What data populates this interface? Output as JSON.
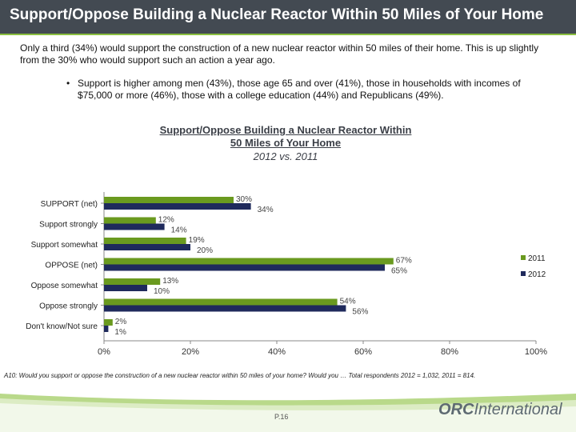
{
  "header": {
    "title": "Support/Oppose Building a Nuclear Reactor Within 50 Miles of Your Home"
  },
  "intro": {
    "text": "Only a third (34%) would support the construction of a new nuclear reactor within 50 miles of their home.  This is up slightly from the 30% who would support such an action a year ago."
  },
  "bullet": {
    "glyph": "•",
    "text": "Support is higher among men (43%), those age 65 and over (41%), those in households with incomes of $75,000 or more (46%), those with a college education (44%) and Republicans (49%)."
  },
  "chart_data": {
    "type": "bar",
    "orientation": "horizontal",
    "title_line1": "Support/Oppose Building a Nuclear Reactor Within",
    "title_line2": "50 Miles of Your Home",
    "subtitle": "2012 vs. 2011",
    "categories": [
      "SUPPORT (net)",
      "Support strongly",
      "Support somewhat",
      "OPPOSE (net)",
      "Oppose somewhat",
      "Oppose strongly",
      "Don't know/Not sure"
    ],
    "series": [
      {
        "name": "2011",
        "color": "#6a9a1f",
        "values": [
          30,
          12,
          19,
          67,
          13,
          54,
          2
        ]
      },
      {
        "name": "2012",
        "color": "#1f2a5c",
        "values": [
          34,
          14,
          20,
          65,
          10,
          56,
          1
        ]
      }
    ],
    "xlim": [
      0,
      100
    ],
    "xticks": [
      0,
      20,
      40,
      60,
      80,
      100
    ],
    "value_suffix": "%",
    "legend": "right",
    "grid": false
  },
  "footnote": "A10:  Would you support or oppose the construction of a new nuclear reactor within 50 miles of your home?  Would you … Total respondents 2012 = 1,032, 2011 = 814.",
  "footer": {
    "page": "P.16",
    "logo_bold": "ORC",
    "logo_rest": "International"
  }
}
